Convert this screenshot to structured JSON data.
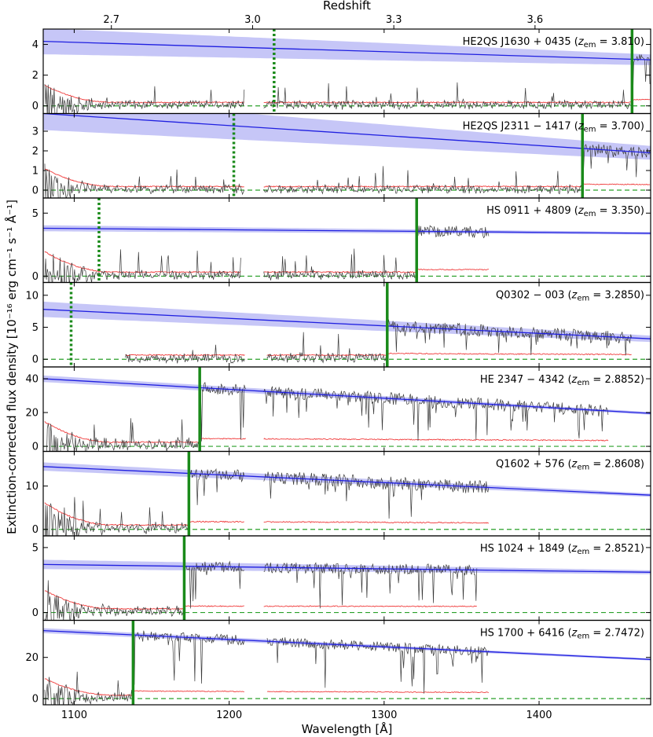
{
  "chart_data": {
    "type": "line",
    "xlabel": "Wavelength [Å]",
    "ylabel": "Extinction-corrected flux density [10⁻¹⁶ erg cm⁻¹ s⁻¹ Å⁻¹]",
    "x2label": "Redshift",
    "xlim": [
      1080,
      1472
    ],
    "x_ticks": [
      1100,
      1200,
      1300,
      1400
    ],
    "x2_ticks": [
      2.7,
      3.0,
      3.3,
      3.6
    ],
    "colors": {
      "flux": "#3a3a3a",
      "error": "#f03c3c",
      "continuum": "#1f1fe0",
      "continuum_band": "#b8b8f5",
      "marker": "#1a8a1a",
      "zero": "#2aa02a"
    },
    "panels": [
      {
        "qso": "HE2QS J1630 + 0435",
        "z_label": "3.810",
        "zem": 3.81,
        "ylim": [
          -0.5,
          5.0
        ],
        "yticks": [
          0,
          2,
          4
        ],
        "cont": [
          4.2,
          3.0
        ],
        "flux_level": 0.35,
        "flux_start": 1081,
        "flux_end": 1472,
        "gaps": [
          [
            1210,
            1222
          ]
        ],
        "solid_lambda": 1460,
        "dotted_lambda": 1229,
        "noise": 0.55,
        "band": 0.35
      },
      {
        "qso": "HE2QS J2311 − 1417",
        "z_label": "3.700",
        "zem": 3.7,
        "ylim": [
          -0.4,
          3.9
        ],
        "yticks": [
          0,
          1,
          2,
          3
        ],
        "cont": [
          3.9,
          1.9
        ],
        "flux_level": 0.25,
        "flux_start": 1081,
        "flux_end": 1472,
        "gaps": [
          [
            1210,
            1222
          ]
        ],
        "solid_lambda": 1428,
        "dotted_lambda": 1203,
        "noise": 0.45,
        "band": 0.35
      },
      {
        "qso": "HS 0911 + 4809",
        "z_label": "3.350",
        "zem": 3.35,
        "ylim": [
          -0.5,
          6.2
        ],
        "yticks": [
          0,
          5
        ],
        "cont": [
          3.8,
          3.4
        ],
        "flux_level": 0.4,
        "flux_start": 1081,
        "flux_end": 1368,
        "gaps": [
          [
            1208,
            1222
          ]
        ],
        "solid_lambda": 1321,
        "dotted_lambda": 1116,
        "noise": 0.8,
        "band": 0.1
      },
      {
        "qso": "Q0302 − 003",
        "z_label": "3.2850",
        "zem": 3.285,
        "ylim": [
          -1.2,
          12.0
        ],
        "yticks": [
          0,
          5,
          10
        ],
        "cont": [
          7.8,
          3.2
        ],
        "flux_level": 0.8,
        "flux_start": 1133,
        "flux_end": 1460,
        "gaps": [
          [
            1210,
            1224
          ]
        ],
        "solid_lambda": 1302,
        "dotted_lambda": 1098,
        "noise": 1.6,
        "band": 0.5
      },
      {
        "qso": "HE 2347 − 4342",
        "z_label": "2.8852",
        "zem": 2.8852,
        "ylim": [
          -3,
          47
        ],
        "yticks": [
          0,
          20,
          40
        ],
        "cont": [
          40,
          19.5
        ],
        "flux_level": 5,
        "flux_start": 1081,
        "flux_end": 1445,
        "gaps": [
          [
            1211,
            1222
          ]
        ],
        "solid_lambda": 1181,
        "dotted_lambda": null,
        "noise": 6,
        "band": 0.8
      },
      {
        "qso": "Q1602 + 576",
        "z_label": "2.8608",
        "zem": 2.8608,
        "ylim": [
          -1.5,
          18
        ],
        "yticks": [
          0,
          10
        ],
        "cont": [
          14.5,
          7.9
        ],
        "flux_level": 1.5,
        "flux_start": 1081,
        "flux_end": 1368,
        "gaps": [
          [
            1210,
            1222
          ]
        ],
        "solid_lambda": 1174,
        "dotted_lambda": null,
        "noise": 2.5,
        "band": 0.4
      },
      {
        "qso": "HS 1024 + 1849",
        "z_label": "2.8521",
        "zem": 2.8521,
        "ylim": [
          -0.6,
          5.9
        ],
        "yticks": [
          0,
          5
        ],
        "cont": [
          3.7,
          3.1
        ],
        "flux_level": 0.5,
        "flux_start": 1081,
        "flux_end": 1360,
        "gaps": [
          [
            1210,
            1222
          ]
        ],
        "solid_lambda": 1171,
        "dotted_lambda": null,
        "noise": 0.7,
        "band": 0.15
      },
      {
        "qso": "HS 1700 + 6416",
        "z_label": "2.7472",
        "zem": 2.7472,
        "ylim": [
          -3,
          38
        ],
        "yticks": [
          0,
          20
        ],
        "cont": [
          33,
          19
        ],
        "flux_level": 3,
        "flux_start": 1081,
        "flux_end": 1368,
        "gaps": [
          [
            1210,
            1224
          ]
        ],
        "solid_lambda": 1138,
        "dotted_lambda": null,
        "noise": 4,
        "band": 0.5
      }
    ]
  }
}
